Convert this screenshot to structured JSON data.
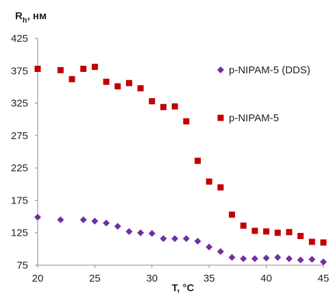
{
  "chart_data": {
    "type": "scatter",
    "title": "",
    "ylabel_main": "R",
    "ylabel_sub": "h",
    "ylabel_tail": ", нм",
    "xlabel": "T, °C",
    "xlim": [
      20,
      45
    ],
    "ylim": [
      75,
      425
    ],
    "xticks": [
      20,
      25,
      30,
      35,
      40,
      45
    ],
    "yticks": [
      75,
      125,
      175,
      225,
      275,
      325,
      375,
      425
    ],
    "grid": false,
    "legend_position": "right",
    "series": [
      {
        "name": "p-NIPAM-5 (DDS)",
        "marker": "diamond",
        "color": "#7030a0",
        "points": [
          [
            20,
            149
          ],
          [
            22,
            145
          ],
          [
            24,
            145
          ],
          [
            25,
            143
          ],
          [
            26,
            140
          ],
          [
            27,
            135
          ],
          [
            28,
            127
          ],
          [
            29,
            125
          ],
          [
            30,
            124
          ],
          [
            31,
            116
          ],
          [
            32,
            116
          ],
          [
            33,
            116
          ],
          [
            34,
            112
          ],
          [
            35,
            103
          ],
          [
            36,
            96
          ],
          [
            37,
            87
          ],
          [
            38,
            85
          ],
          [
            39,
            85
          ],
          [
            40,
            86
          ],
          [
            41,
            87
          ],
          [
            42,
            85
          ],
          [
            43,
            83
          ],
          [
            44,
            84
          ],
          [
            45,
            80
          ]
        ]
      },
      {
        "name": "p-NIPAM-5",
        "marker": "square",
        "color": "#c00000",
        "points": [
          [
            20,
            378
          ],
          [
            22,
            376
          ],
          [
            23,
            362
          ],
          [
            24,
            378
          ],
          [
            25,
            381
          ],
          [
            26,
            358
          ],
          [
            27,
            351
          ],
          [
            28,
            356
          ],
          [
            29,
            348
          ],
          [
            30,
            328
          ],
          [
            31,
            319
          ],
          [
            32,
            320
          ],
          [
            33,
            297
          ],
          [
            34,
            236
          ],
          [
            35,
            204
          ],
          [
            36,
            195
          ],
          [
            37,
            153
          ],
          [
            38,
            136
          ],
          [
            39,
            128
          ],
          [
            40,
            127
          ],
          [
            41,
            125
          ],
          [
            42,
            126
          ],
          [
            43,
            120
          ],
          [
            44,
            111
          ],
          [
            45,
            110
          ]
        ]
      }
    ]
  }
}
